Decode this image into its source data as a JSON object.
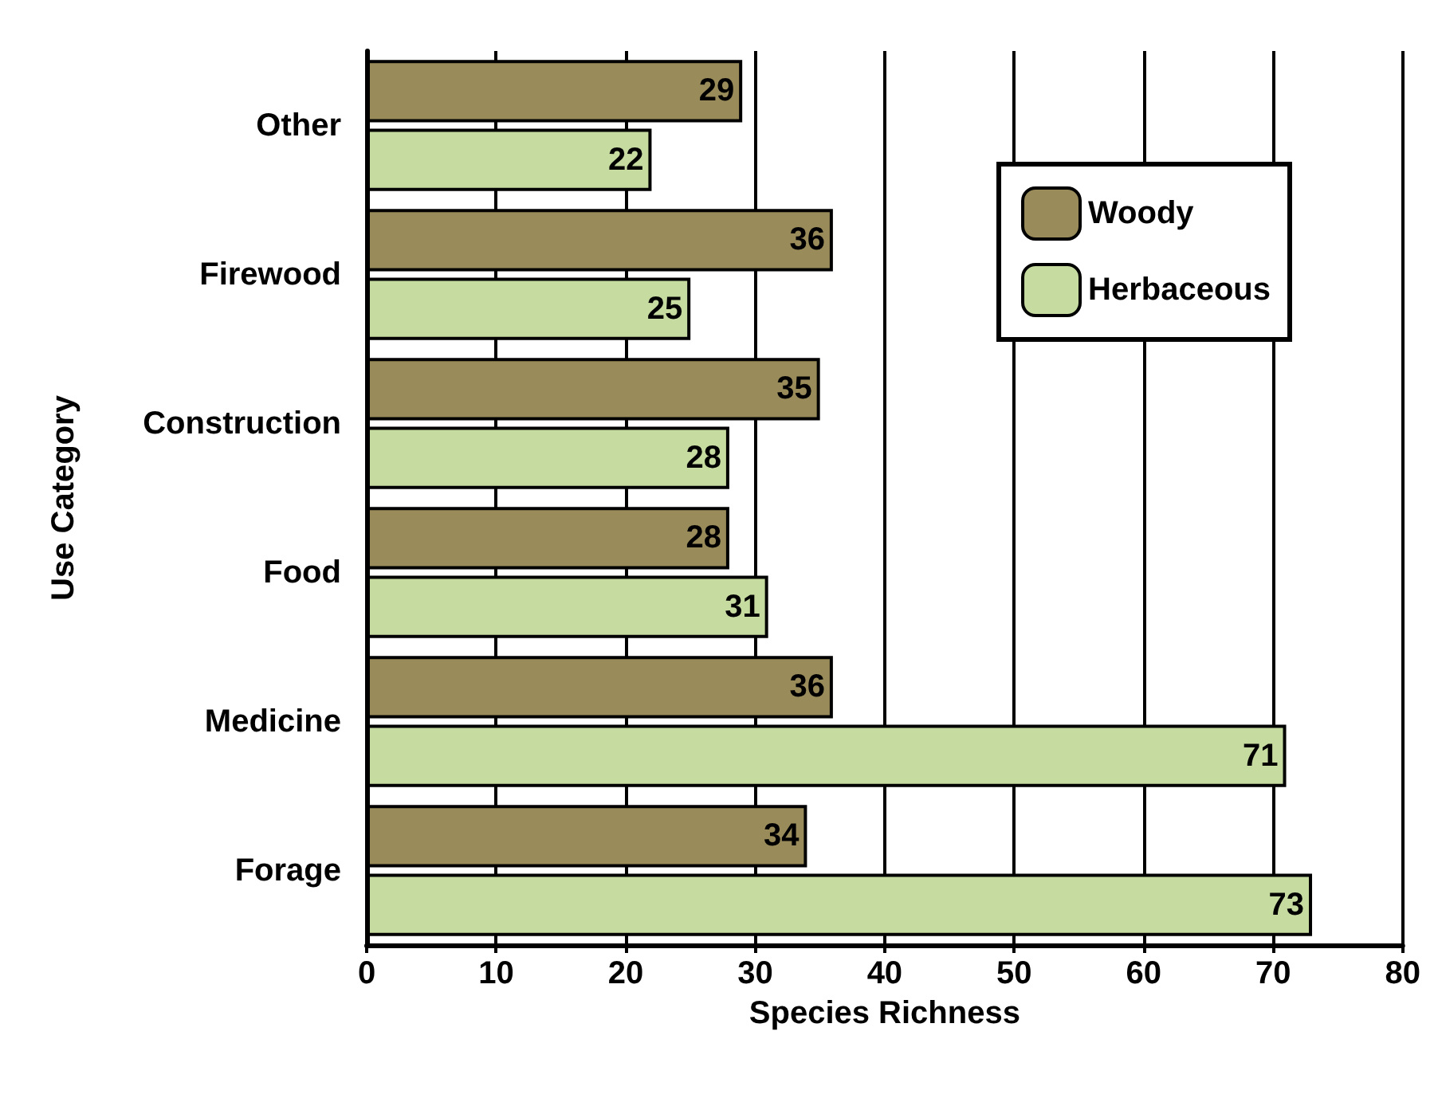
{
  "chart_data": {
    "type": "bar",
    "orientation": "horizontal",
    "xlabel": "Species Richness",
    "ylabel": "Use Category",
    "categories": [
      "Other",
      "Firewood",
      "Construction",
      "Food",
      "Medicine",
      "Forage"
    ],
    "series": [
      {
        "name": "Woody",
        "color": "#998c5a",
        "values": [
          29,
          36,
          35,
          28,
          36,
          34
        ]
      },
      {
        "name": "Herbaceous",
        "color": "#c6dba0",
        "values": [
          22,
          25,
          28,
          31,
          71,
          73
        ]
      }
    ],
    "xlim": [
      0,
      80
    ],
    "xticks": [
      0,
      10,
      20,
      30,
      40,
      50,
      60,
      70,
      80
    ],
    "grid": "x",
    "legend": "top right",
    "data_labels": true
  }
}
